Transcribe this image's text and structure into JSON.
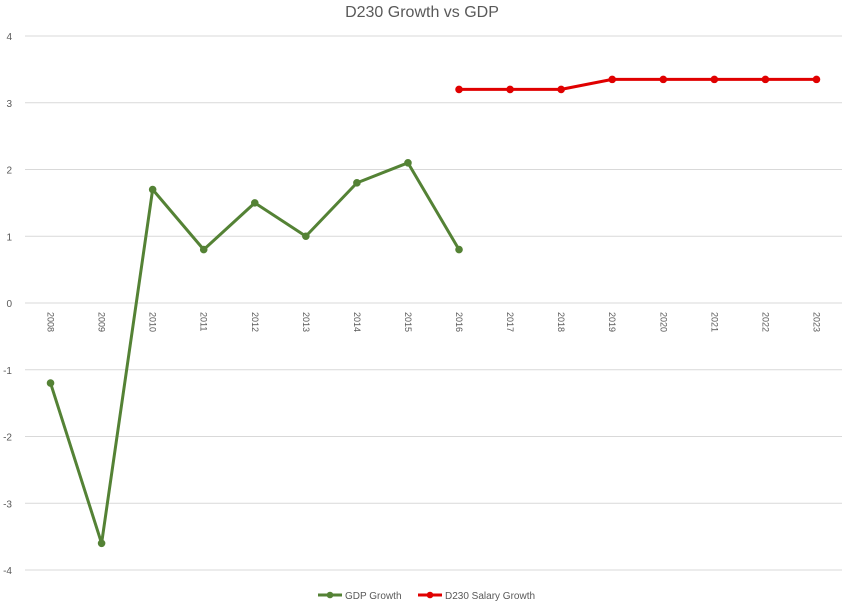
{
  "chart_data": {
    "type": "line",
    "title": "D230 Growth vs GDP",
    "categories": [
      "2008",
      "2009",
      "2010",
      "2011",
      "2012",
      "2013",
      "2014",
      "2015",
      "2016",
      "2017",
      "2018",
      "2019",
      "2020",
      "2021",
      "2022",
      "2023"
    ],
    "ylim": [
      -4,
      4
    ],
    "yticks": [
      4,
      3,
      2,
      1,
      0,
      -1,
      -2,
      -3,
      -4
    ],
    "grid": true,
    "legend_position": "bottom",
    "series": [
      {
        "name": "GDP Growth",
        "color": "#548235",
        "values": [
          -1.2,
          -3.6,
          1.7,
          0.8,
          1.5,
          1.0,
          1.8,
          2.1,
          0.8,
          null,
          null,
          null,
          null,
          null,
          null,
          null
        ]
      },
      {
        "name": "D230 Salary Growth",
        "color": "#e00000",
        "values": [
          null,
          null,
          null,
          null,
          null,
          null,
          null,
          null,
          3.2,
          3.2,
          3.2,
          3.35,
          3.35,
          3.35,
          3.35,
          3.35
        ]
      }
    ]
  }
}
